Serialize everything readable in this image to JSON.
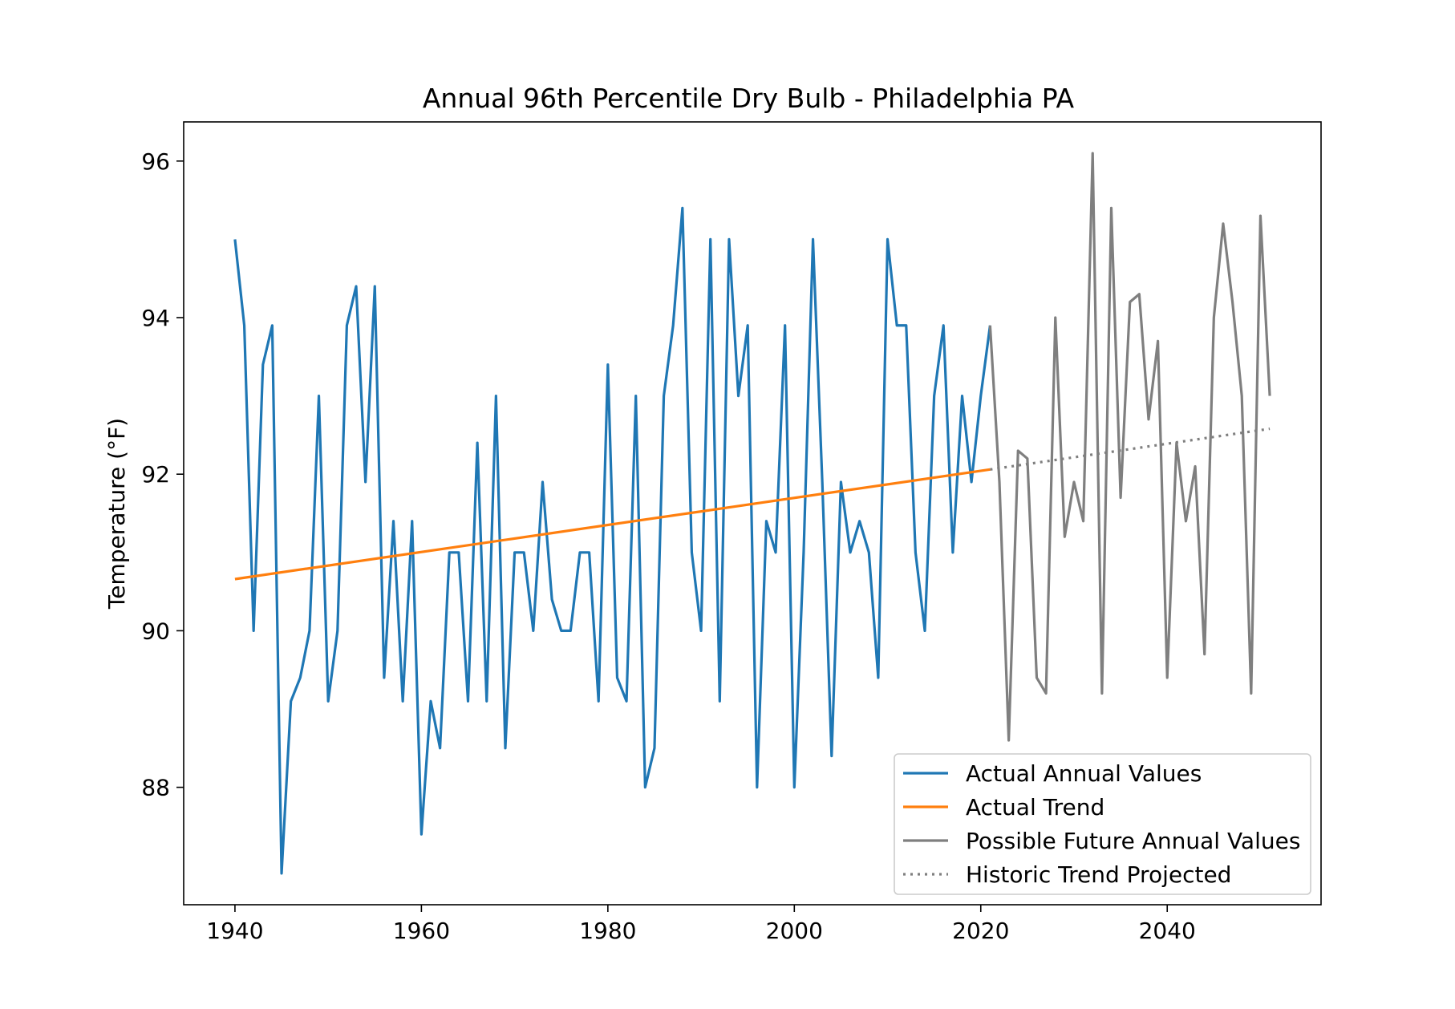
{
  "chart_data": {
    "type": "line",
    "title": "Annual 96th Percentile Dry Bulb - Philadelphia PA",
    "xlabel": "",
    "ylabel": "Temperature (°F)",
    "xlim": [
      1934.5,
      2056.5
    ],
    "ylim": [
      86.5,
      96.5
    ],
    "xticks": [
      1940,
      1960,
      1980,
      2000,
      2020,
      2040
    ],
    "yticks": [
      88,
      90,
      92,
      94,
      96
    ],
    "grid": false,
    "legend_position": "lower-right",
    "series": [
      {
        "name": "Actual Annual Values",
        "color": "#1f77b4",
        "style": "solid",
        "x": [
          1940,
          1941,
          1942,
          1943,
          1944,
          1945,
          1946,
          1947,
          1948,
          1949,
          1950,
          1951,
          1952,
          1953,
          1954,
          1955,
          1956,
          1957,
          1958,
          1959,
          1960,
          1961,
          1962,
          1963,
          1964,
          1965,
          1966,
          1967,
          1968,
          1969,
          1970,
          1971,
          1972,
          1973,
          1974,
          1975,
          1976,
          1977,
          1978,
          1979,
          1980,
          1981,
          1982,
          1983,
          1984,
          1985,
          1986,
          1987,
          1988,
          1989,
          1990,
          1991,
          1992,
          1993,
          1994,
          1995,
          1996,
          1997,
          1998,
          1999,
          2000,
          2001,
          2002,
          2003,
          2004,
          2005,
          2006,
          2007,
          2008,
          2009,
          2010,
          2011,
          2012,
          2013,
          2014,
          2015,
          2016,
          2017,
          2018,
          2019,
          2020,
          2021
        ],
        "y": [
          95.0,
          93.9,
          90.0,
          93.4,
          93.9,
          86.9,
          89.1,
          89.4,
          90.0,
          93.0,
          89.1,
          90.0,
          93.9,
          94.4,
          91.9,
          94.4,
          89.4,
          91.4,
          89.1,
          91.4,
          87.4,
          89.1,
          88.5,
          91.0,
          91.0,
          89.1,
          92.4,
          89.1,
          93.0,
          88.5,
          91.0,
          91.0,
          90.0,
          91.9,
          90.4,
          90.0,
          90.0,
          91.0,
          91.0,
          89.1,
          93.4,
          89.4,
          89.1,
          93.0,
          88.0,
          88.5,
          93.0,
          93.9,
          95.4,
          91.0,
          90.0,
          95.0,
          89.1,
          95.0,
          93.0,
          93.9,
          88.0,
          91.4,
          91.0,
          93.9,
          88.0,
          91.0,
          95.0,
          91.9,
          88.4,
          91.9,
          91.0,
          91.4,
          91.0,
          89.4,
          95.0,
          93.9,
          93.9,
          91.0,
          90.0,
          93.0,
          93.9,
          91.0,
          93.0,
          91.9,
          93.0,
          93.9
        ]
      },
      {
        "name": "Actual Trend",
        "color": "#ff7f0e",
        "style": "solid",
        "x": [
          1940,
          2021
        ],
        "y": [
          90.66,
          92.06
        ]
      },
      {
        "name": "Possible Future Annual Values",
        "color": "#7f7f7f",
        "style": "solid",
        "x": [
          2021,
          2022,
          2023,
          2024,
          2025,
          2026,
          2027,
          2028,
          2029,
          2030,
          2031,
          2032,
          2033,
          2034,
          2035,
          2036,
          2037,
          2038,
          2039,
          2040,
          2041,
          2042,
          2043,
          2044,
          2045,
          2046,
          2047,
          2048,
          2049,
          2050,
          2051
        ],
        "y": [
          93.9,
          91.9,
          88.6,
          92.3,
          92.2,
          89.4,
          89.2,
          94.0,
          91.2,
          91.9,
          91.4,
          96.1,
          89.2,
          95.4,
          91.7,
          94.2,
          94.3,
          92.7,
          93.7,
          89.4,
          92.4,
          91.4,
          92.1,
          89.7,
          94.0,
          95.2,
          94.2,
          93.0,
          89.2,
          95.3,
          93.0
        ]
      },
      {
        "name": "Historic Trend Projected",
        "color": "#7f7f7f",
        "style": "dotted",
        "x": [
          2021,
          2051
        ],
        "y": [
          92.06,
          92.58
        ]
      }
    ]
  }
}
